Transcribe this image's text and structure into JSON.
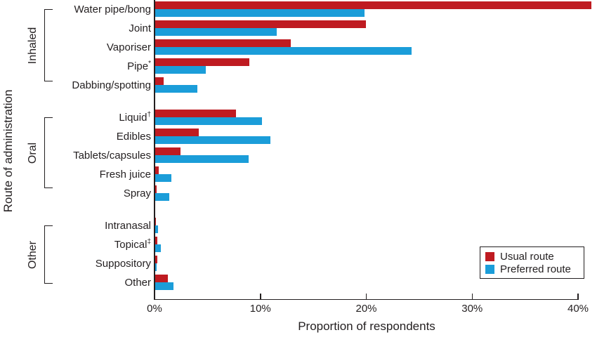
{
  "chart_data": {
    "type": "bar",
    "orientation": "horizontal",
    "title": "",
    "xlabel": "Proportion of respondents",
    "ylabel": "Route of administration",
    "xlim": [
      0,
      40
    ],
    "x_ticks": [
      {
        "label": "0%",
        "value": 0
      },
      {
        "label": "10%",
        "value": 10
      },
      {
        "label": "20%",
        "value": 20
      },
      {
        "label": "30%",
        "value": 30
      },
      {
        "label": "40%",
        "value": 40
      }
    ],
    "grid": false,
    "legend_position": "inside-bottom-right",
    "categories": [
      "Water pipe/bong",
      "Joint",
      "Vaporiser",
      "Pipe*",
      "Dabbing/spotting",
      "Liquid†",
      "Edibles",
      "Tablets/capsules",
      "Fresh juice",
      "Spray",
      "Intranasal",
      "Topical‡",
      "Suppository",
      "Other"
    ],
    "groups": [
      {
        "label": "Inhaled",
        "start": 0,
        "end": 4
      },
      {
        "label": "Oral",
        "start": 5,
        "end": 9
      },
      {
        "label": "Other",
        "start": 10,
        "end": 13
      }
    ],
    "series": [
      {
        "name": "Usual route",
        "color": "#bf1b21",
        "values": [
          41.2,
          19.9,
          12.8,
          8.9,
          0.8,
          7.6,
          4.1,
          2.4,
          0.3,
          0.15,
          0.05,
          0.2,
          0.2,
          1.2
        ]
      },
      {
        "name": "Preferred route",
        "color": "#1b9dd9",
        "values": [
          19.8,
          11.5,
          24.2,
          4.8,
          4.0,
          10.1,
          10.9,
          8.8,
          1.5,
          1.3,
          0.25,
          0.55,
          0.15,
          1.7
        ]
      }
    ]
  },
  "colors": {
    "axis": "#231f20",
    "text": "#231f20",
    "usual": "#bf1b21",
    "preferred": "#1b9dd9"
  }
}
